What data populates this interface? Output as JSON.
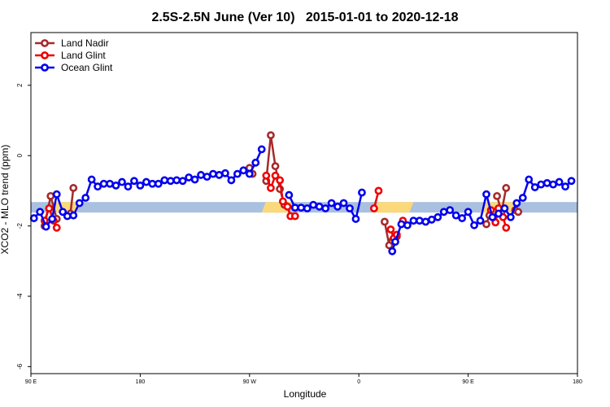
{
  "chart_data": {
    "type": "line",
    "title": "2.5S-2.5N June (Ver 10)   2015-01-01 to 2020-12-18",
    "xlabel": "Longitude",
    "ylabel": "XCO2 - MLO trend (ppm)",
    "xlim": [
      0,
      360
    ],
    "ylim": [
      -6.2,
      3.5
    ],
    "x_ticks": [
      {
        "x": 0,
        "label": "90 E"
      },
      {
        "x": 72,
        "label": "180"
      },
      {
        "x": 144,
        "label": "90 W"
      },
      {
        "x": 216,
        "label": "0"
      },
      {
        "x": 288,
        "label": "90 E"
      },
      {
        "x": 360,
        "label": "180"
      }
    ],
    "y_ticks": [
      {
        "y": -6,
        "label": "-6"
      },
      {
        "y": -4,
        "label": "-4"
      },
      {
        "y": -2,
        "label": "-2"
      },
      {
        "y": 0,
        "label": "0"
      },
      {
        "y": 2,
        "label": "2"
      }
    ],
    "band": {
      "y_low": -1.62,
      "y_high": -1.32,
      "ocean_color": "#a9c0e0",
      "land_color": "#fbd97a",
      "land_segments": [
        [
          11,
          33
        ],
        [
          152,
          172
        ],
        [
          226,
          252
        ],
        [
          296,
          320
        ]
      ]
    },
    "legend": {
      "position": "top-left",
      "entries": [
        {
          "label": "Land Nadir",
          "color": "#a52a2a"
        },
        {
          "label": "Land Glint",
          "color": "#ee0000"
        },
        {
          "label": "Ocean Glint",
          "color": "#0000ee"
        }
      ]
    },
    "series": [
      {
        "name": "Land Nadir",
        "color": "#a52a2a",
        "segments": [
          [
            [
              9,
              -2.0
            ],
            [
              13,
              -1.15
            ],
            [
              17,
              -1.8
            ]
          ],
          [
            [
              26,
              -1.65
            ],
            [
              28,
              -0.92
            ]
          ],
          [
            [
              144,
              -0.35
            ],
            [
              146,
              -0.52
            ]
          ],
          [
            [
              155,
              -0.72
            ],
            [
              158,
              0.58
            ],
            [
              161,
              -0.3
            ],
            [
              164,
              -0.95
            ],
            [
              167,
              -1.4
            ]
          ],
          [
            [
              233,
              -1.88
            ],
            [
              236,
              -2.55
            ],
            [
              238,
              -2.42
            ],
            [
              241,
              -2.3
            ]
          ],
          [
            [
              300,
              -1.95
            ],
            [
              302,
              -1.7
            ]
          ],
          [
            [
              307,
              -1.15
            ],
            [
              310,
              -1.6
            ],
            [
              313,
              -0.92
            ]
          ],
          [
            [
              319,
              -1.55
            ],
            [
              321,
              -1.6
            ]
          ]
        ]
      },
      {
        "name": "Land Glint",
        "color": "#ee0000",
        "segments": [
          [
            [
              9,
              -1.85
            ],
            [
              12,
              -1.5
            ],
            [
              15,
              -1.85
            ],
            [
              17,
              -2.05
            ]
          ],
          [
            [
              155,
              -0.57
            ],
            [
              158,
              -0.92
            ],
            [
              161,
              -0.57
            ],
            [
              164,
              -0.7
            ],
            [
              166,
              -1.3
            ],
            [
              169,
              -1.45
            ],
            [
              171,
              -1.72
            ],
            [
              174,
              -1.72
            ]
          ],
          [
            [
              226,
              -1.5
            ],
            [
              229,
              -1.0
            ]
          ],
          [
            [
              237,
              -2.1
            ],
            [
              239,
              -2.35
            ],
            [
              241,
              -2.25
            ]
          ],
          [
            [
              245,
              -1.85
            ]
          ],
          [
            [
              303,
              -1.55
            ],
            [
              306,
              -1.9
            ],
            [
              308,
              -1.5
            ],
            [
              311,
              -1.75
            ],
            [
              313,
              -2.05
            ]
          ]
        ]
      },
      {
        "name": "Ocean Glint",
        "color": "#0000ee",
        "segments": [
          [
            [
              2,
              -1.78
            ],
            [
              6,
              -1.6
            ],
            [
              10,
              -2.02
            ],
            [
              14,
              -1.8
            ],
            [
              17,
              -1.1
            ],
            [
              21,
              -1.6
            ],
            [
              24,
              -1.72
            ],
            [
              28,
              -1.7
            ],
            [
              32,
              -1.35
            ],
            [
              36,
              -1.2
            ],
            [
              40,
              -0.68
            ],
            [
              44,
              -0.88
            ],
            [
              48,
              -0.8
            ],
            [
              52,
              -0.8
            ],
            [
              56,
              -0.85
            ],
            [
              60,
              -0.75
            ],
            [
              64,
              -0.88
            ],
            [
              68,
              -0.72
            ],
            [
              72,
              -0.85
            ],
            [
              76,
              -0.75
            ],
            [
              80,
              -0.8
            ],
            [
              84,
              -0.8
            ],
            [
              88,
              -0.7
            ],
            [
              92,
              -0.72
            ],
            [
              96,
              -0.7
            ],
            [
              100,
              -0.72
            ],
            [
              104,
              -0.62
            ],
            [
              108,
              -0.68
            ],
            [
              112,
              -0.55
            ],
            [
              116,
              -0.6
            ],
            [
              120,
              -0.52
            ],
            [
              124,
              -0.55
            ],
            [
              128,
              -0.5
            ],
            [
              132,
              -0.7
            ],
            [
              136,
              -0.52
            ],
            [
              140,
              -0.42
            ],
            [
              144,
              -0.52
            ],
            [
              148,
              -0.2
            ],
            [
              152,
              0.18
            ]
          ],
          [
            [
              170,
              -1.12
            ],
            [
              174,
              -1.48
            ],
            [
              178,
              -1.48
            ],
            [
              182,
              -1.5
            ],
            [
              186,
              -1.4
            ],
            [
              190,
              -1.45
            ],
            [
              194,
              -1.5
            ],
            [
              198,
              -1.35
            ],
            [
              202,
              -1.45
            ],
            [
              206,
              -1.35
            ],
            [
              210,
              -1.5
            ],
            [
              214,
              -1.8
            ],
            [
              218,
              -1.05
            ]
          ],
          [
            [
              238,
              -2.72
            ],
            [
              240,
              -2.45
            ],
            [
              244,
              -1.95
            ],
            [
              248,
              -1.98
            ],
            [
              252,
              -1.85
            ],
            [
              256,
              -1.85
            ],
            [
              260,
              -1.88
            ],
            [
              264,
              -1.82
            ],
            [
              268,
              -1.75
            ],
            [
              272,
              -1.6
            ],
            [
              276,
              -1.55
            ],
            [
              280,
              -1.7
            ],
            [
              284,
              -1.78
            ],
            [
              288,
              -1.6
            ],
            [
              292,
              -1.98
            ],
            [
              296,
              -1.85
            ],
            [
              300,
              -1.1
            ],
            [
              304,
              -1.75
            ],
            [
              308,
              -1.65
            ],
            [
              312,
              -1.5
            ],
            [
              316,
              -1.75
            ],
            [
              320,
              -1.35
            ],
            [
              324,
              -1.2
            ],
            [
              328,
              -0.68
            ],
            [
              332,
              -0.9
            ],
            [
              336,
              -0.82
            ],
            [
              340,
              -0.78
            ],
            [
              344,
              -0.82
            ],
            [
              348,
              -0.75
            ],
            [
              352,
              -0.88
            ],
            [
              356,
              -0.72
            ]
          ]
        ]
      }
    ]
  }
}
